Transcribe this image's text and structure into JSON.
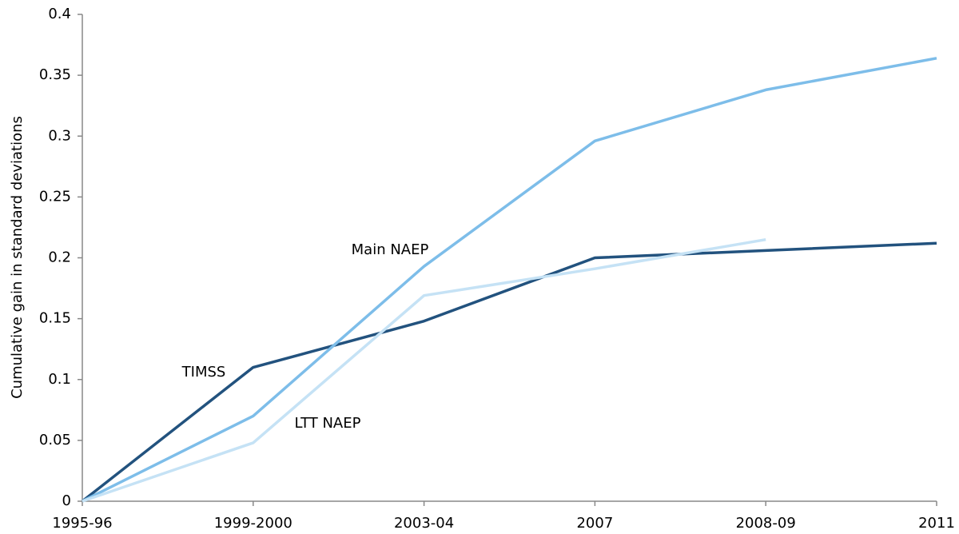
{
  "chart_data": {
    "type": "line",
    "y_label": "Cumulative gain in standard deviations",
    "categories": [
      "1995-96",
      "1999-2000",
      "2003-04",
      "2007",
      "2008-09",
      "2011"
    ],
    "series": [
      {
        "name": "TIMSS",
        "color": "#22527e",
        "values": [
          0,
          0.11,
          0.148,
          0.2,
          0.206,
          0.212
        ]
      },
      {
        "name": "Main NAEP",
        "color": "#7dbde9",
        "values": [
          0,
          0.07,
          0.193,
          0.296,
          0.338,
          0.364
        ]
      },
      {
        "name": "LTT NAEP",
        "color": "#c5e2f5",
        "values": [
          0,
          0.048,
          0.169,
          0.191,
          0.215,
          null
        ]
      }
    ],
    "ylim": [
      0,
      0.4
    ],
    "yticks": [
      0,
      0.05,
      0.1,
      0.15,
      0.2,
      0.25,
      0.3,
      0.35,
      0.4
    ],
    "grid": false
  }
}
